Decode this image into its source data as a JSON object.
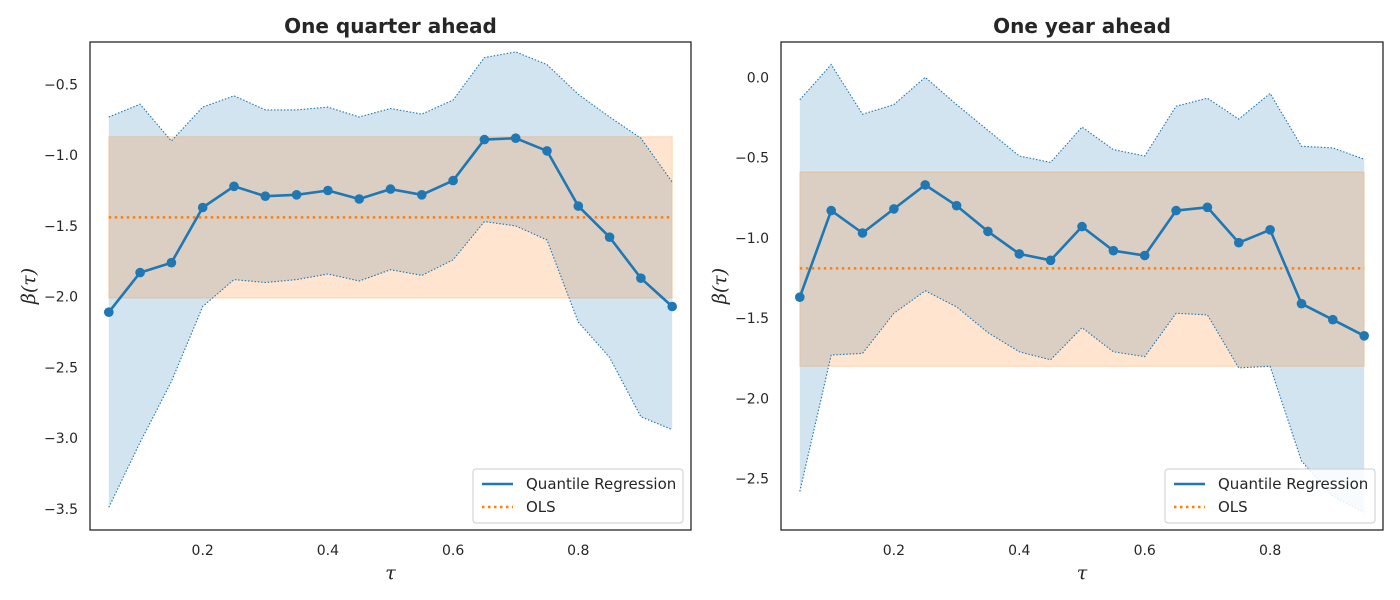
{
  "colors": {
    "qr_line": "#1f77b4",
    "qr_band": "#1f77b4",
    "ols_line": "#ff7f0e",
    "ols_band": "#ff7f0e",
    "axes": "#262626"
  },
  "legend": {
    "qr_label": "Quantile Regression",
    "ols_label": "OLS",
    "location": "lower right"
  },
  "chart_data": [
    {
      "type": "line",
      "title": "One quarter ahead",
      "xlabel": "τ",
      "ylabel": "β(τ)",
      "xlim": [
        0.02,
        0.98
      ],
      "ylim": [
        -3.65,
        -0.2
      ],
      "xticks": [
        0.2,
        0.4,
        0.6,
        0.8
      ],
      "xtick_labels": [
        "0.2",
        "0.4",
        "0.6",
        "0.8"
      ],
      "yticks": [
        -3.5,
        -3.0,
        -2.5,
        -2.0,
        -1.5,
        -1.0,
        -0.5
      ],
      "ytick_labels": [
        "−3.5",
        "−3.0",
        "−2.5",
        "−2.0",
        "−1.5",
        "−1.0",
        "−0.5"
      ],
      "grid": false,
      "legend_location": "lower right",
      "x": [
        0.05,
        0.1,
        0.15,
        0.2,
        0.25,
        0.3,
        0.35,
        0.4,
        0.45,
        0.5,
        0.55,
        0.6,
        0.65,
        0.7,
        0.75,
        0.8,
        0.85,
        0.9,
        0.95
      ],
      "series": [
        {
          "name": "Quantile Regression",
          "values": [
            -2.11,
            -1.83,
            -1.76,
            -1.37,
            -1.22,
            -1.29,
            -1.28,
            -1.25,
            -1.31,
            -1.24,
            -1.28,
            -1.18,
            -0.89,
            -0.88,
            -0.97,
            -1.36,
            -1.58,
            -1.87,
            -2.07
          ],
          "lower": [
            -3.49,
            -3.03,
            -2.6,
            -2.07,
            -1.88,
            -1.9,
            -1.88,
            -1.84,
            -1.89,
            -1.81,
            -1.85,
            -1.74,
            -1.47,
            -1.5,
            -1.6,
            -2.18,
            -2.43,
            -2.85,
            -2.94
          ],
          "upper": [
            -0.73,
            -0.64,
            -0.9,
            -0.66,
            -0.58,
            -0.68,
            -0.68,
            -0.66,
            -0.73,
            -0.67,
            -0.71,
            -0.61,
            -0.31,
            -0.27,
            -0.36,
            -0.57,
            -0.73,
            -0.88,
            -1.19
          ]
        },
        {
          "name": "OLS",
          "value": -1.44,
          "lower": -2.01,
          "upper": -0.87
        }
      ]
    },
    {
      "type": "line",
      "title": "One year ahead",
      "xlabel": "τ",
      "ylabel": "β(τ)",
      "xlim": [
        0.02,
        0.98
      ],
      "ylim": [
        -2.82,
        0.22
      ],
      "xticks": [
        0.2,
        0.4,
        0.6,
        0.8
      ],
      "xtick_labels": [
        "0.2",
        "0.4",
        "0.6",
        "0.8"
      ],
      "yticks": [
        -2.5,
        -2.0,
        -1.5,
        -1.0,
        -0.5,
        0.0
      ],
      "ytick_labels": [
        "−2.5",
        "−2.0",
        "−1.5",
        "−1.0",
        "−0.5",
        "0.0"
      ],
      "grid": false,
      "legend_location": "lower right",
      "x": [
        0.05,
        0.1,
        0.15,
        0.2,
        0.25,
        0.3,
        0.35,
        0.4,
        0.45,
        0.5,
        0.55,
        0.6,
        0.65,
        0.7,
        0.75,
        0.8,
        0.85,
        0.9,
        0.95
      ],
      "series": [
        {
          "name": "Quantile Regression",
          "values": [
            -1.37,
            -0.83,
            -0.97,
            -0.82,
            -0.67,
            -0.8,
            -0.96,
            -1.1,
            -1.14,
            -0.93,
            -1.08,
            -1.11,
            -0.83,
            -0.81,
            -1.03,
            -0.95,
            -1.41,
            -1.51,
            -1.61
          ],
          "lower": [
            -2.58,
            -1.73,
            -1.72,
            -1.47,
            -1.33,
            -1.43,
            -1.59,
            -1.71,
            -1.76,
            -1.56,
            -1.71,
            -1.74,
            -1.47,
            -1.48,
            -1.81,
            -1.8,
            -2.39,
            -2.61,
            -2.71
          ],
          "upper": [
            -0.14,
            0.08,
            -0.23,
            -0.17,
            0.0,
            -0.17,
            -0.33,
            -0.49,
            -0.53,
            -0.31,
            -0.45,
            -0.49,
            -0.18,
            -0.13,
            -0.26,
            -0.1,
            -0.43,
            -0.44,
            -0.51
          ]
        },
        {
          "name": "OLS",
          "value": -1.19,
          "lower": -1.8,
          "upper": -0.59
        }
      ]
    }
  ]
}
